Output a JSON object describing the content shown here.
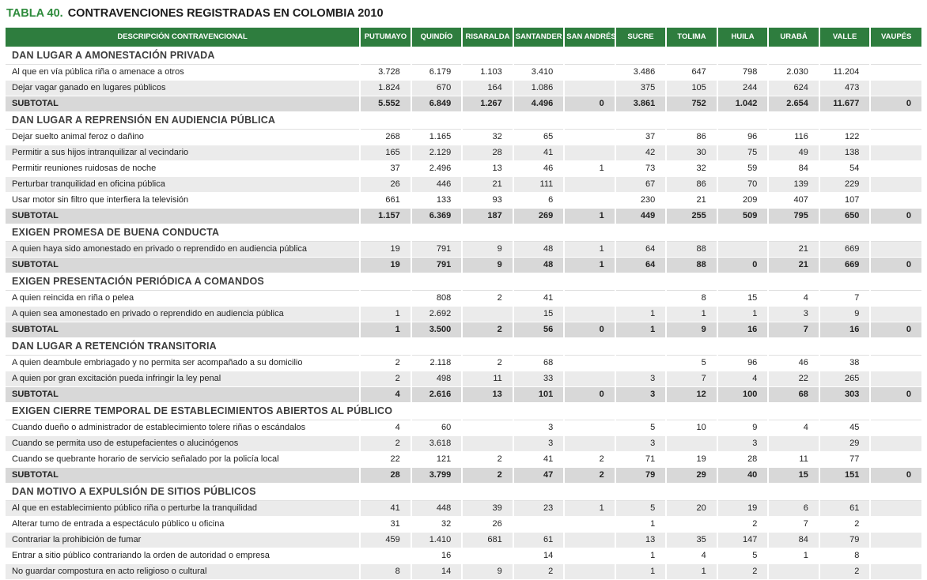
{
  "title": {
    "label": "TABLA 40.",
    "text": "CONTRAVENCIONES REGISTRADAS EN COLOMBIA 2010"
  },
  "colors": {
    "header_bg": "#2e7d3e",
    "title_accent": "#2e8b3c",
    "row_alt": "#ebebeb",
    "subtotal_bg": "#d8d8d8"
  },
  "table": {
    "columns": [
      "DESCRIPCIÓN CONTRAVENCIONAL",
      "PUTUMAYO",
      "QUINDÍO",
      "RISARALDA",
      "SANTANDER",
      "SAN ANDRÉS",
      "SUCRE",
      "TOLIMA",
      "HUILA",
      "URABÁ",
      "VALLE",
      "VAUPÉS"
    ],
    "sections": [
      {
        "header": "DAN LUGAR A AMONESTACIÓN PRIVADA",
        "rows": [
          {
            "label": "Al que en vía pública riña o amenace a otros",
            "values": [
              "3.728",
              "6.179",
              "1.103",
              "3.410",
              "",
              "3.486",
              "647",
              "798",
              "2.030",
              "11.204",
              ""
            ]
          },
          {
            "label": "Dejar vagar ganado en lugares públicos",
            "values": [
              "1.824",
              "670",
              "164",
              "1.086",
              "",
              "375",
              "105",
              "244",
              "624",
              "473",
              ""
            ]
          }
        ],
        "subtotal": {
          "label": "SUBTOTAL",
          "values": [
            "5.552",
            "6.849",
            "1.267",
            "4.496",
            "0",
            "3.861",
            "752",
            "1.042",
            "2.654",
            "11.677",
            "0"
          ]
        }
      },
      {
        "header": "DAN LUGAR A REPRENSIÓN EN AUDIENCIA PÚBLICA",
        "rows": [
          {
            "label": "Dejar suelto animal feroz o dañino",
            "values": [
              "268",
              "1.165",
              "32",
              "65",
              "",
              "37",
              "86",
              "96",
              "116",
              "122",
              ""
            ]
          },
          {
            "label": "Permitir a sus hijos intranquilizar al vecindario",
            "values": [
              "165",
              "2.129",
              "28",
              "41",
              "",
              "42",
              "30",
              "75",
              "49",
              "138",
              ""
            ]
          },
          {
            "label": "Permitir reuniones ruidosas de noche",
            "values": [
              "37",
              "2.496",
              "13",
              "46",
              "1",
              "73",
              "32",
              "59",
              "84",
              "54",
              ""
            ]
          },
          {
            "label": "Perturbar tranquilidad en oficina pública",
            "values": [
              "26",
              "446",
              "21",
              "111",
              "",
              "67",
              "86",
              "70",
              "139",
              "229",
              ""
            ]
          },
          {
            "label": "Usar motor sin filtro que interfiera la televisión",
            "values": [
              "661",
              "133",
              "93",
              "6",
              "",
              "230",
              "21",
              "209",
              "407",
              "107",
              ""
            ]
          }
        ],
        "subtotal": {
          "label": "SUBTOTAL",
          "values": [
            "1.157",
            "6.369",
            "187",
            "269",
            "1",
            "449",
            "255",
            "509",
            "795",
            "650",
            "0"
          ]
        }
      },
      {
        "header": "EXIGEN PROMESA DE BUENA CONDUCTA",
        "rows": [
          {
            "label": "A quien haya sido amonestado en privado o reprendido en audiencia pública",
            "values": [
              "19",
              "791",
              "9",
              "48",
              "1",
              "64",
              "88",
              "",
              "21",
              "669",
              ""
            ]
          }
        ],
        "subtotal": {
          "label": "SUBTOTAL",
          "values": [
            "19",
            "791",
            "9",
            "48",
            "1",
            "64",
            "88",
            "0",
            "21",
            "669",
            "0"
          ]
        }
      },
      {
        "header": "EXIGEN PRESENTACIÓN PERIÓDICA A COMANDOS",
        "rows": [
          {
            "label": "A quien reincida en riña o pelea",
            "values": [
              "",
              "808",
              "2",
              "41",
              "",
              "",
              "8",
              "15",
              "4",
              "7",
              ""
            ]
          },
          {
            "label": "A quien sea amonestado en privado o reprendido en audiencia pública",
            "values": [
              "1",
              "2.692",
              "",
              "15",
              "",
              "1",
              "1",
              "1",
              "3",
              "9",
              ""
            ]
          }
        ],
        "subtotal": {
          "label": "SUBTOTAL",
          "values": [
            "1",
            "3.500",
            "2",
            "56",
            "0",
            "1",
            "9",
            "16",
            "7",
            "16",
            "0"
          ]
        }
      },
      {
        "header": "DAN LUGAR A RETENCIÓN TRANSITORIA",
        "rows": [
          {
            "label": "A quien deambule embriagado y no permita ser acompañado a su domicilio",
            "values": [
              "2",
              "2.118",
              "2",
              "68",
              "",
              "",
              "5",
              "96",
              "46",
              "38",
              ""
            ]
          },
          {
            "label": "A quien por gran excitación pueda infringir la ley penal",
            "values": [
              "2",
              "498",
              "11",
              "33",
              "",
              "3",
              "7",
              "4",
              "22",
              "265",
              ""
            ]
          }
        ],
        "subtotal": {
          "label": "SUBTOTAL",
          "values": [
            "4",
            "2.616",
            "13",
            "101",
            "0",
            "3",
            "12",
            "100",
            "68",
            "303",
            "0"
          ]
        }
      },
      {
        "header": "EXIGEN CIERRE TEMPORAL DE ESTABLECIMIENTOS ABIERTOS AL PÚBLICO",
        "rows": [
          {
            "label": "Cuando dueño o administrador de establecimiento tolere riñas o escándalos",
            "values": [
              "4",
              "60",
              "",
              "3",
              "",
              "5",
              "10",
              "9",
              "4",
              "45",
              ""
            ]
          },
          {
            "label": "Cuando se permita uso de estupefacientes o alucinógenos",
            "values": [
              "2",
              "3.618",
              "",
              "3",
              "",
              "3",
              "",
              "3",
              "",
              "29",
              ""
            ]
          },
          {
            "label": "Cuando se quebrante horario de servicio señalado por la policía local",
            "values": [
              "22",
              "121",
              "2",
              "41",
              "2",
              "71",
              "19",
              "28",
              "11",
              "77",
              ""
            ]
          }
        ],
        "subtotal": {
          "label": "SUBTOTAL",
          "values": [
            "28",
            "3.799",
            "2",
            "47",
            "2",
            "79",
            "29",
            "40",
            "15",
            "151",
            "0"
          ]
        }
      },
      {
        "header": "DAN MOTIVO A EXPULSIÓN DE SITIOS PÚBLICOS",
        "rows": [
          {
            "label": "Al que en establecimiento público riña o perturbe la tranquilidad",
            "values": [
              "41",
              "448",
              "39",
              "23",
              "1",
              "5",
              "20",
              "19",
              "6",
              "61",
              ""
            ]
          },
          {
            "label": "Alterar tumo de entrada a espectáculo público u oficina",
            "values": [
              "31",
              "32",
              "26",
              "",
              "",
              "1",
              "",
              "2",
              "7",
              "2",
              ""
            ]
          },
          {
            "label": "Contrariar la prohibición de fumar",
            "values": [
              "459",
              "1.410",
              "681",
              "61",
              "",
              "13",
              "35",
              "147",
              "84",
              "79",
              ""
            ]
          },
          {
            "label": "Entrar a sitio público contrariando la orden de autoridad o empresa",
            "values": [
              "",
              "16",
              "",
              "14",
              "",
              "1",
              "4",
              "5",
              "1",
              "8",
              ""
            ]
          },
          {
            "label": "No guardar compostura en acto religioso o cultural",
            "values": [
              "8",
              "14",
              "9",
              "2",
              "",
              "1",
              "1",
              "2",
              "",
              "2",
              ""
            ]
          }
        ],
        "subtotal": null
      }
    ]
  }
}
